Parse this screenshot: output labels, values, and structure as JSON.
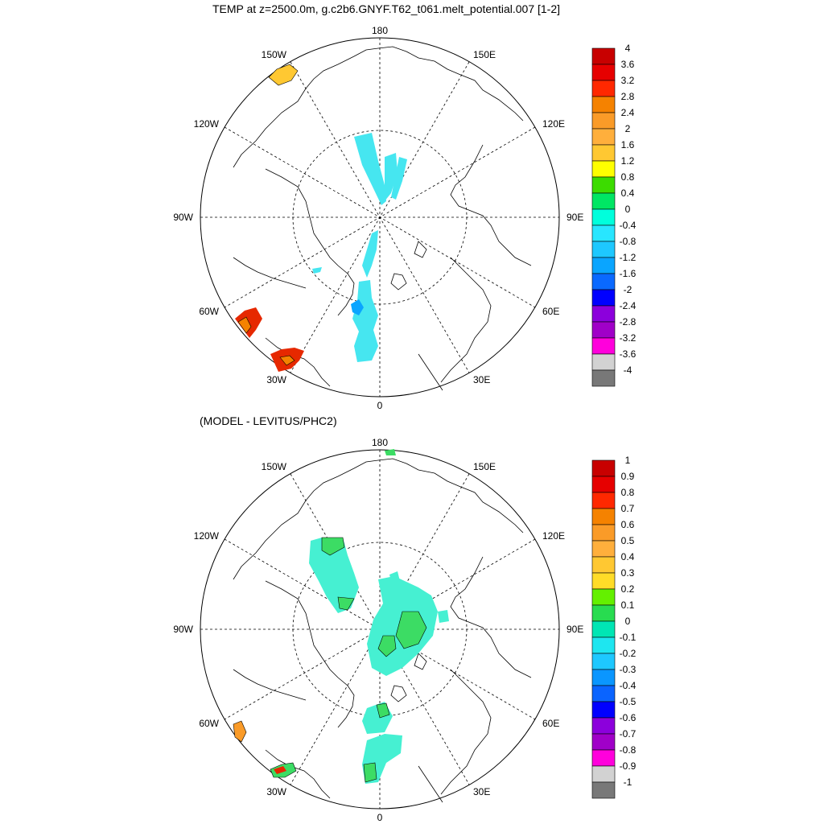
{
  "figure": {
    "title_top": "TEMP at z=2500.0m, g.c2b6.GNYF.T62_t061.melt_potential.007 [1-2]",
    "title_bottom": "(MODEL - LEVITUS/PHC2)"
  },
  "longitude_labels": {
    "top": "180",
    "bottom": "0",
    "left": "90W",
    "right": "90E",
    "w150": "150W",
    "e150": "150E",
    "w120": "120W",
    "e120": "120E",
    "w60": "60W",
    "e60": "60E",
    "w30": "30W",
    "e30": "30E"
  },
  "colorbar_top": {
    "labels": [
      "4",
      "3.6",
      "3.2",
      "2.8",
      "2.4",
      "2",
      "1.6",
      "1.2",
      "0.8",
      "0.4",
      "0",
      "-0.4",
      "-0.8",
      "-1.2",
      "-1.6",
      "-2",
      "-2.4",
      "-2.8",
      "-3.2",
      "-3.6",
      "-4"
    ],
    "colors": [
      "#c80000",
      "#e60000",
      "#ff2800",
      "#f58200",
      "#fa9b28",
      "#ffaf3c",
      "#ffc832",
      "#ffff00",
      "#3cdc00",
      "#00e664",
      "#00ffdc",
      "#28e6ff",
      "#1ec8ff",
      "#0aa5ff",
      "#0a69ff",
      "#0000ff",
      "#8c00dc",
      "#a000c8",
      "#ff00dc",
      "#d2d2d2",
      "#787878"
    ]
  },
  "colorbar_bottom": {
    "labels": [
      "1",
      "0.9",
      "0.8",
      "0.7",
      "0.6",
      "0.5",
      "0.4",
      "0.3",
      "0.2",
      "0.1",
      "0",
      "-0.1",
      "-0.2",
      "-0.3",
      "-0.4",
      "-0.5",
      "-0.6",
      "-0.7",
      "-0.8",
      "-0.9",
      "-1"
    ],
    "colors": [
      "#c80000",
      "#e60000",
      "#ff2800",
      "#f58200",
      "#fa9b28",
      "#ffaf3c",
      "#ffc832",
      "#ffdc28",
      "#64f000",
      "#28dc50",
      "#00e6b4",
      "#1ee6f0",
      "#1ec8ff",
      "#0a96ff",
      "#0a64ff",
      "#0000ff",
      "#8c00dc",
      "#a000c8",
      "#ff00dc",
      "#d2d2d2",
      "#787878"
    ]
  },
  "colors": {
    "top_main_anomaly": "#46e6f0",
    "bottom_main_anomaly": "#46f0d2",
    "bottom_green": "#3cdc64",
    "warm_orange": "#f58200",
    "warm_red": "#e62800",
    "warm_yellow": "#ffc832",
    "blue_spot": "#0aa5ff"
  }
}
